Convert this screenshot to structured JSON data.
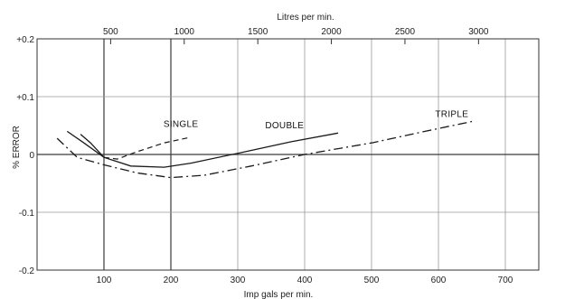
{
  "chart_data": {
    "type": "line",
    "title": "",
    "xlabel": "Imp gals per min.",
    "x2label": "Litres per min.",
    "ylabel": "% ERROR",
    "xlim": [
      0,
      750
    ],
    "ylim": [
      -0.2,
      0.2
    ],
    "x_ticks": [
      {
        "value": 100,
        "label": "100"
      },
      {
        "value": 200,
        "label": "200"
      },
      {
        "value": 300,
        "label": "300"
      },
      {
        "value": 400,
        "label": "400"
      },
      {
        "value": 500,
        "label": "500"
      },
      {
        "value": 600,
        "label": "600"
      },
      {
        "value": 700,
        "label": "700"
      }
    ],
    "x2_ticks": [
      {
        "value": 500,
        "label": "500"
      },
      {
        "value": 1000,
        "label": "1000"
      },
      {
        "value": 1500,
        "label": "1500"
      },
      {
        "value": 2000,
        "label": "2000"
      },
      {
        "value": 2500,
        "label": "2500"
      },
      {
        "value": 3000,
        "label": "3000"
      }
    ],
    "x2_scale": 4.546,
    "y_ticks": [
      {
        "value": 0.2,
        "label": "+0.2"
      },
      {
        "value": 0.1,
        "label": "+0.1"
      },
      {
        "value": 0,
        "label": "0"
      },
      {
        "value": -0.1,
        "label": "-0.1"
      },
      {
        "value": -0.2,
        "label": "-0.2"
      }
    ],
    "grid": true,
    "series": [
      {
        "name": "SINGLE",
        "style": "solid-then-dashed",
        "x": [
          65,
          80,
          100,
          120,
          150,
          190,
          230
        ],
        "y": [
          0.035,
          0.02,
          -0.005,
          -0.008,
          0.005,
          0.02,
          0.03
        ],
        "solid_until_x": 105
      },
      {
        "name": "DOUBLE",
        "style": "solid",
        "x": [
          45,
          70,
          100,
          140,
          190,
          230,
          300,
          380,
          450
        ],
        "y": [
          0.04,
          0.02,
          -0.005,
          -0.02,
          -0.022,
          -0.015,
          0.002,
          0.022,
          0.037
        ]
      },
      {
        "name": "TRIPLE",
        "style": "dash-dot",
        "x": [
          30,
          60,
          100,
          150,
          200,
          250,
          320,
          400,
          500,
          580,
          650
        ],
        "y": [
          0.028,
          -0.005,
          -0.018,
          -0.032,
          -0.04,
          -0.036,
          -0.02,
          0.0,
          0.02,
          0.04,
          0.057
        ]
      }
    ]
  }
}
